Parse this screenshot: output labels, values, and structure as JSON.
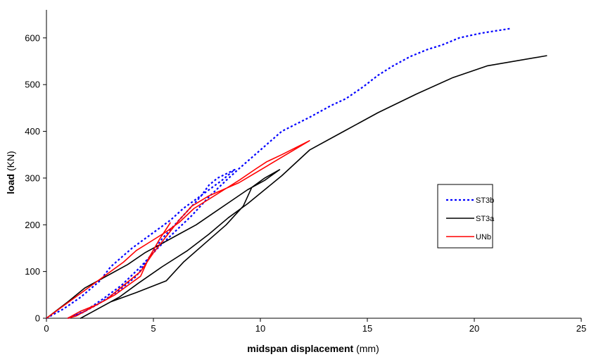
{
  "chart_data": {
    "type": "line",
    "xlabel_bold": "midspan displacement",
    "xlabel_unit": " (mm)",
    "ylabel_bold": "load",
    "ylabel_unit": " (KN)",
    "xlim": [
      0,
      25
    ],
    "ylim": [
      0,
      660
    ],
    "xticks": [
      0,
      5,
      10,
      15,
      20,
      25
    ],
    "yticks": [
      0,
      100,
      200,
      300,
      400,
      500,
      600
    ],
    "grid": false,
    "legend_position": "right",
    "series": [
      {
        "name": "ST3b",
        "color": "#0000ff",
        "dash": "dotted",
        "points": [
          [
            0,
            0
          ],
          [
            0.8,
            20
          ],
          [
            1.6,
            45
          ],
          [
            2.5,
            80
          ],
          [
            3.0,
            110
          ],
          [
            3.5,
            130
          ],
          [
            4.0,
            150
          ],
          [
            4.6,
            170
          ],
          [
            5.2,
            190
          ],
          [
            5.8,
            210
          ],
          [
            6.4,
            235
          ],
          [
            7.0,
            255
          ],
          [
            7.6,
            275
          ],
          [
            8.2,
            295
          ],
          [
            8.8,
            318
          ],
          [
            8.0,
            300
          ],
          [
            7.6,
            285
          ],
          [
            7.2,
            260
          ],
          [
            6.8,
            240
          ],
          [
            6.4,
            220
          ],
          [
            6.0,
            200
          ],
          [
            5.4,
            170
          ],
          [
            4.8,
            130
          ],
          [
            4.2,
            90
          ],
          [
            3.4,
            60
          ],
          [
            2.4,
            30
          ],
          [
            1.6,
            10
          ],
          [
            1.0,
            0
          ],
          [
            1.8,
            15
          ],
          [
            2.6,
            40
          ],
          [
            3.5,
            70
          ],
          [
            4.4,
            110
          ],
          [
            5.2,
            150
          ],
          [
            6.0,
            185
          ],
          [
            6.8,
            220
          ],
          [
            7.6,
            260
          ],
          [
            8.4,
            295
          ],
          [
            9.0,
            320
          ],
          [
            9.5,
            340
          ],
          [
            10.0,
            360
          ],
          [
            10.5,
            380
          ],
          [
            11.0,
            400
          ],
          [
            12.3,
            430
          ],
          [
            13.3,
            455
          ],
          [
            14.0,
            470
          ],
          [
            14.8,
            495
          ],
          [
            15.5,
            520
          ],
          [
            16.2,
            540
          ],
          [
            17.0,
            560
          ],
          [
            17.8,
            575
          ],
          [
            18.5,
            585
          ],
          [
            19.3,
            600
          ],
          [
            20.3,
            610
          ],
          [
            21.7,
            620
          ]
        ]
      },
      {
        "name": "ST3a",
        "color": "#000000",
        "dash": "solid",
        "points": [
          [
            0,
            0
          ],
          [
            1.0,
            35
          ],
          [
            1.8,
            65
          ],
          [
            2.4,
            80
          ],
          [
            3.0,
            95
          ],
          [
            3.8,
            115
          ],
          [
            4.6,
            140
          ],
          [
            5.4,
            160
          ],
          [
            6.2,
            180
          ],
          [
            7.0,
            200
          ],
          [
            7.8,
            225
          ],
          [
            8.6,
            250
          ],
          [
            9.4,
            275
          ],
          [
            10.2,
            295
          ],
          [
            10.9,
            318
          ],
          [
            10.2,
            300
          ],
          [
            9.6,
            280
          ],
          [
            9.2,
            240
          ],
          [
            8.4,
            200
          ],
          [
            7.4,
            160
          ],
          [
            6.4,
            120
          ],
          [
            5.6,
            80
          ],
          [
            4.2,
            55
          ],
          [
            3.0,
            35
          ],
          [
            1.6,
            0
          ],
          [
            2.4,
            20
          ],
          [
            3.4,
            45
          ],
          [
            4.3,
            75
          ],
          [
            5.4,
            110
          ],
          [
            6.6,
            145
          ],
          [
            7.6,
            180
          ],
          [
            8.5,
            215
          ],
          [
            9.4,
            245
          ],
          [
            10.2,
            275
          ],
          [
            11.0,
            305
          ],
          [
            12.3,
            360
          ],
          [
            13.9,
            400
          ],
          [
            15.5,
            440
          ],
          [
            17.3,
            480
          ],
          [
            19.0,
            515
          ],
          [
            20.6,
            540
          ],
          [
            23.4,
            562
          ]
        ]
      },
      {
        "name": "UNb",
        "color": "#ff0000",
        "dash": "solid",
        "points": [
          [
            0,
            0
          ],
          [
            0.6,
            20
          ],
          [
            1.2,
            40
          ],
          [
            1.8,
            60
          ],
          [
            2.4,
            80
          ],
          [
            3.0,
            100
          ],
          [
            3.6,
            120
          ],
          [
            4.2,
            145
          ],
          [
            4.9,
            165
          ],
          [
            5.6,
            185
          ],
          [
            6.2,
            205
          ],
          [
            6.9,
            235
          ],
          [
            7.6,
            255
          ],
          [
            8.3,
            275
          ],
          [
            9.0,
            295
          ],
          [
            9.8,
            320
          ],
          [
            10.3,
            335
          ],
          [
            11.0,
            350
          ],
          [
            12.3,
            380
          ],
          [
            9.0,
            290
          ],
          [
            7.6,
            262
          ],
          [
            6.8,
            240
          ],
          [
            6.2,
            210
          ],
          [
            5.6,
            175
          ],
          [
            5.0,
            140
          ],
          [
            4.4,
            100
          ],
          [
            3.6,
            70
          ],
          [
            2.8,
            40
          ],
          [
            2.0,
            20
          ],
          [
            1.4,
            5
          ],
          [
            1.0,
            0
          ],
          [
            1.6,
            15
          ],
          [
            2.4,
            30
          ],
          [
            3.2,
            50
          ],
          [
            3.8,
            70
          ],
          [
            4.4,
            90
          ],
          [
            4.8,
            130
          ],
          [
            5.3,
            170
          ],
          [
            5.8,
            205
          ]
        ]
      }
    ]
  }
}
